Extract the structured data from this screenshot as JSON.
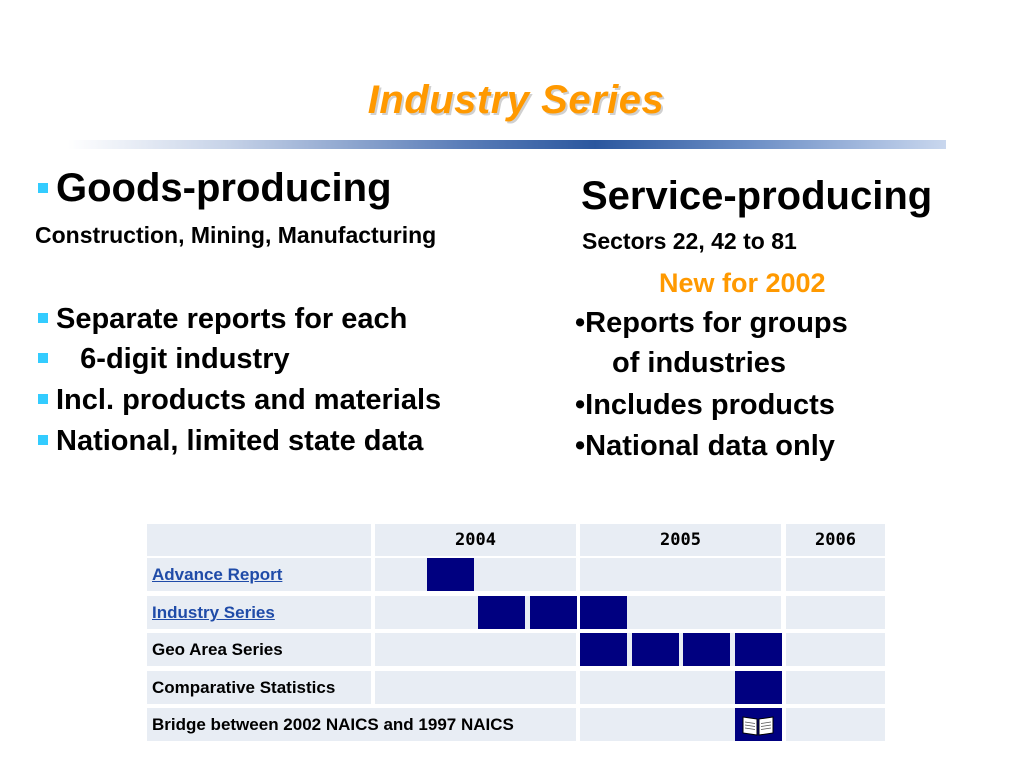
{
  "title": "Industry Series",
  "left": {
    "heading": "Goods-producing",
    "subheading": "Construction, Mining, Manufacturing",
    "bullets": [
      "Separate reports for each",
      "   6-digit industry",
      "Incl. products and materials",
      "National, limited state data"
    ]
  },
  "right": {
    "heading": "Service-producing",
    "subheading": "Sectors 22, 42 to 81",
    "new_label": "New for 2002",
    "bullets": [
      "•Reports for groups",
      "of industries",
      "•Includes products",
      "•National data only"
    ]
  },
  "schedule": {
    "years": [
      "2004",
      "2005",
      "2006"
    ],
    "rows": [
      {
        "label": "Advance Report",
        "link": true,
        "filled_slots": [
          1
        ]
      },
      {
        "label": "Industry Series",
        "link": true,
        "filled_slots": [
          2,
          3,
          4
        ]
      },
      {
        "label": "Geo Area Series",
        "link": false,
        "filled_slots": [
          4,
          5,
          6,
          7
        ]
      },
      {
        "label": "Comparative Statistics",
        "link": false,
        "filled_slots": [
          7
        ]
      },
      {
        "label": "Bridge between 2002 NAICS and 1997 NAICS",
        "link": false,
        "filled_slots": [
          7
        ],
        "icon": "book-icon"
      }
    ],
    "block_color": "#000080",
    "link_color": "#1f4ba8"
  },
  "colors": {
    "title": "#ff9900",
    "bullet": "#33ccff",
    "cell_bg": "#e8edf4"
  }
}
